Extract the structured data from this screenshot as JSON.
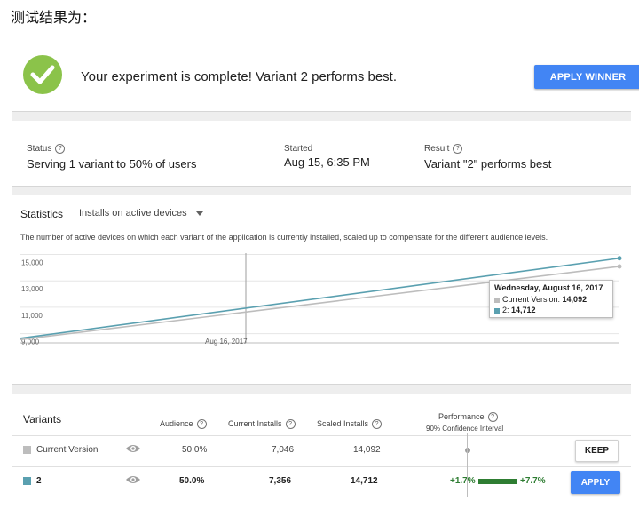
{
  "heading": "测试结果为：",
  "banner": {
    "message": "Your experiment is complete! Variant 2 performs best.",
    "apply_winner_label": "APPLY WINNER",
    "icon": "check-circle-icon",
    "accent": "#8bc34a"
  },
  "summary": {
    "status_label": "Status",
    "status_value": "Serving 1 variant to 50% of users",
    "started_label": "Started",
    "started_value": "Aug 15, 6:35 PM",
    "result_label": "Result",
    "result_value": "Variant \"2\" performs best"
  },
  "statistics": {
    "title": "Statistics",
    "metric_select": "Installs on active devices",
    "description": "The number of active devices on which each variant of the application is currently installed, scaled up to compensate for the different audience levels."
  },
  "chart_data": {
    "type": "line",
    "y_ticks": [
      "15,000",
      "13,000",
      "11,000",
      "9,000"
    ],
    "ylim": [
      8300,
      15100
    ],
    "x_tick_label": "Aug 16, 2017",
    "series": [
      {
        "name": "Current Version",
        "color": "#bdbdbd",
        "start": 8550,
        "end": 14092
      },
      {
        "name": "2",
        "color": "#5aa0b0",
        "start": 8650,
        "end": 14712
      }
    ],
    "tooltip": {
      "title": "Wednesday, August 16, 2017",
      "rows": [
        {
          "name": "Current Version",
          "value": "14,092",
          "color": "#bdbdbd"
        },
        {
          "name": "2",
          "value": "14,712",
          "color": "#5aa0b0"
        }
      ]
    },
    "grid": true
  },
  "variants": {
    "title": "Variants",
    "headers": {
      "audience": "Audience",
      "current_installs": "Current Installs",
      "scaled_installs": "Scaled Installs",
      "performance": "Performance",
      "performance_sub": "90% Confidence Interval"
    },
    "rows": [
      {
        "name": "Current Version",
        "audience": "50.0%",
        "current_installs": "7,046",
        "scaled_installs": "14,092",
        "action": "KEEP",
        "color": "#bdbdbd"
      },
      {
        "name": "2",
        "audience": "50.0%",
        "current_installs": "7,356",
        "scaled_installs": "14,712",
        "ci_low": "+1.7%",
        "ci_high": "+7.7%",
        "action": "APPLY",
        "color": "#5aa0b0"
      }
    ]
  }
}
